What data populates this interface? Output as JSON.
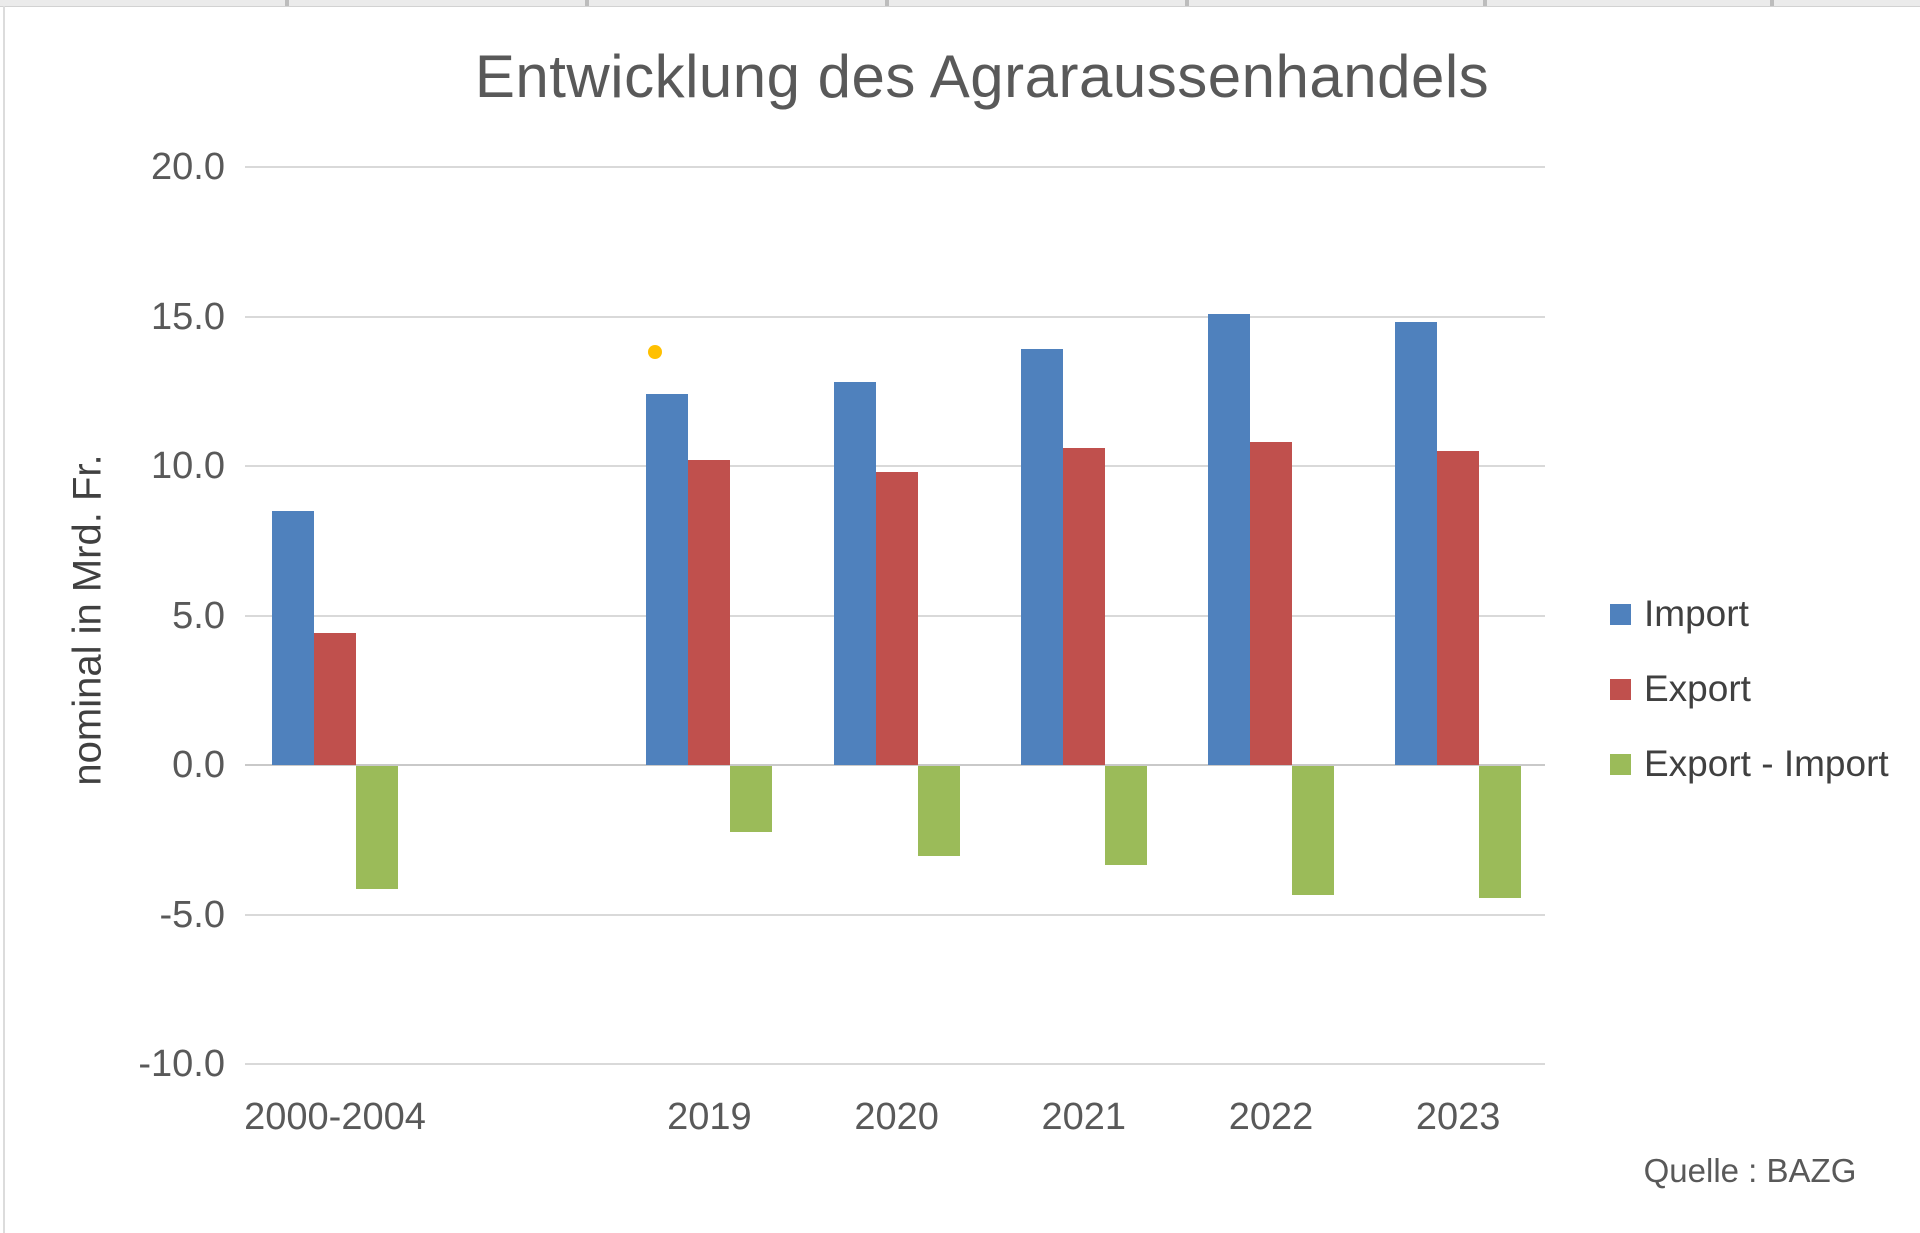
{
  "chart_data": {
    "type": "bar",
    "title": "Entwicklung des Agraraussenhandels",
    "ylabel": "nominal in Mrd. Fr.",
    "xlabel": "",
    "source": "Quelle : BAZG",
    "categories": [
      "2000-2004",
      "",
      "2019",
      "2020",
      "2021",
      "2022",
      "2023"
    ],
    "series": [
      {
        "name": "Import",
        "color": "#4F81BD",
        "values": [
          8.5,
          null,
          12.4,
          12.8,
          13.9,
          15.1,
          14.8
        ]
      },
      {
        "name": "Export",
        "color": "#C0504D",
        "values": [
          4.4,
          null,
          10.2,
          9.8,
          10.6,
          10.8,
          10.5
        ]
      },
      {
        "name": "Export - Import",
        "color": "#9BBB59",
        "values": [
          -4.1,
          null,
          -2.2,
          -3.0,
          -3.3,
          -4.3,
          -4.4
        ]
      }
    ],
    "yticks": [
      20,
      15,
      10,
      5,
      0,
      -5,
      -10
    ],
    "ytick_labels": [
      "20.0",
      "15.0",
      "10.0",
      "5.0",
      "0.0",
      "-5.0",
      "-10.0"
    ],
    "ylim": [
      -10,
      20
    ],
    "grid": true,
    "legend_position": "right",
    "gridline_color": "#D9D9D9",
    "stray_point": {
      "color": "#FFC000",
      "value": 13.8,
      "category": "2019"
    }
  }
}
